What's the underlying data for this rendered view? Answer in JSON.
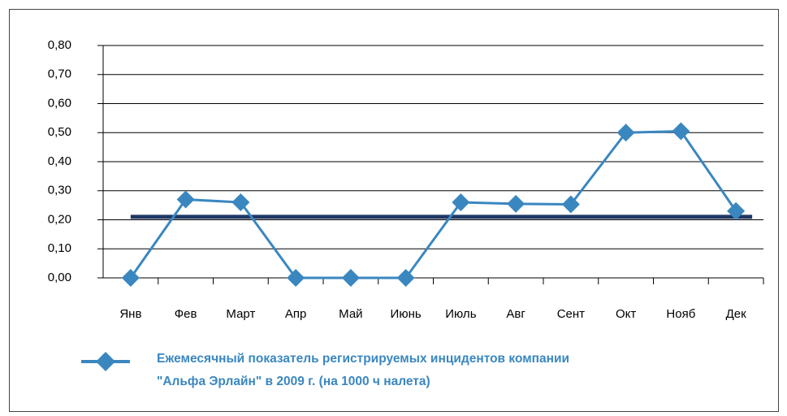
{
  "chart_data": {
    "type": "line",
    "categories": [
      "Янв",
      "Фев",
      "Март",
      "Апр",
      "Май",
      "Июнь",
      "Июль",
      "Авг",
      "Сент",
      "Окт",
      "Нояб",
      "Дек"
    ],
    "series": [
      {
        "name": "Ежемесячный показатель регистрируемых инцидентов компании\n\"Альфа Эрлайн\" в 2009 г. (на 1000 ч налета)",
        "color": "#3a87c0",
        "values": [
          0,
          0.27,
          0.26,
          0,
          0,
          0,
          0.26,
          0.255,
          0.253,
          0.5,
          0.505,
          0.23
        ]
      }
    ],
    "reference_line": {
      "value": 0.21,
      "color": "#1f3864"
    },
    "ylim": [
      0,
      0.8
    ],
    "yticks": [
      {
        "value": 0,
        "label": "0,00"
      },
      {
        "value": 0.1,
        "label": "0,10"
      },
      {
        "value": 0.2,
        "label": "0,20"
      },
      {
        "value": 0.3,
        "label": "0,30"
      },
      {
        "value": 0.4,
        "label": "0,40"
      },
      {
        "value": 0.5,
        "label": "0,50"
      },
      {
        "value": 0.6,
        "label": "0,60"
      },
      {
        "value": 0.7,
        "label": "0,70"
      },
      {
        "value": 0.8,
        "label": "0,80"
      }
    ],
    "grid": true
  }
}
